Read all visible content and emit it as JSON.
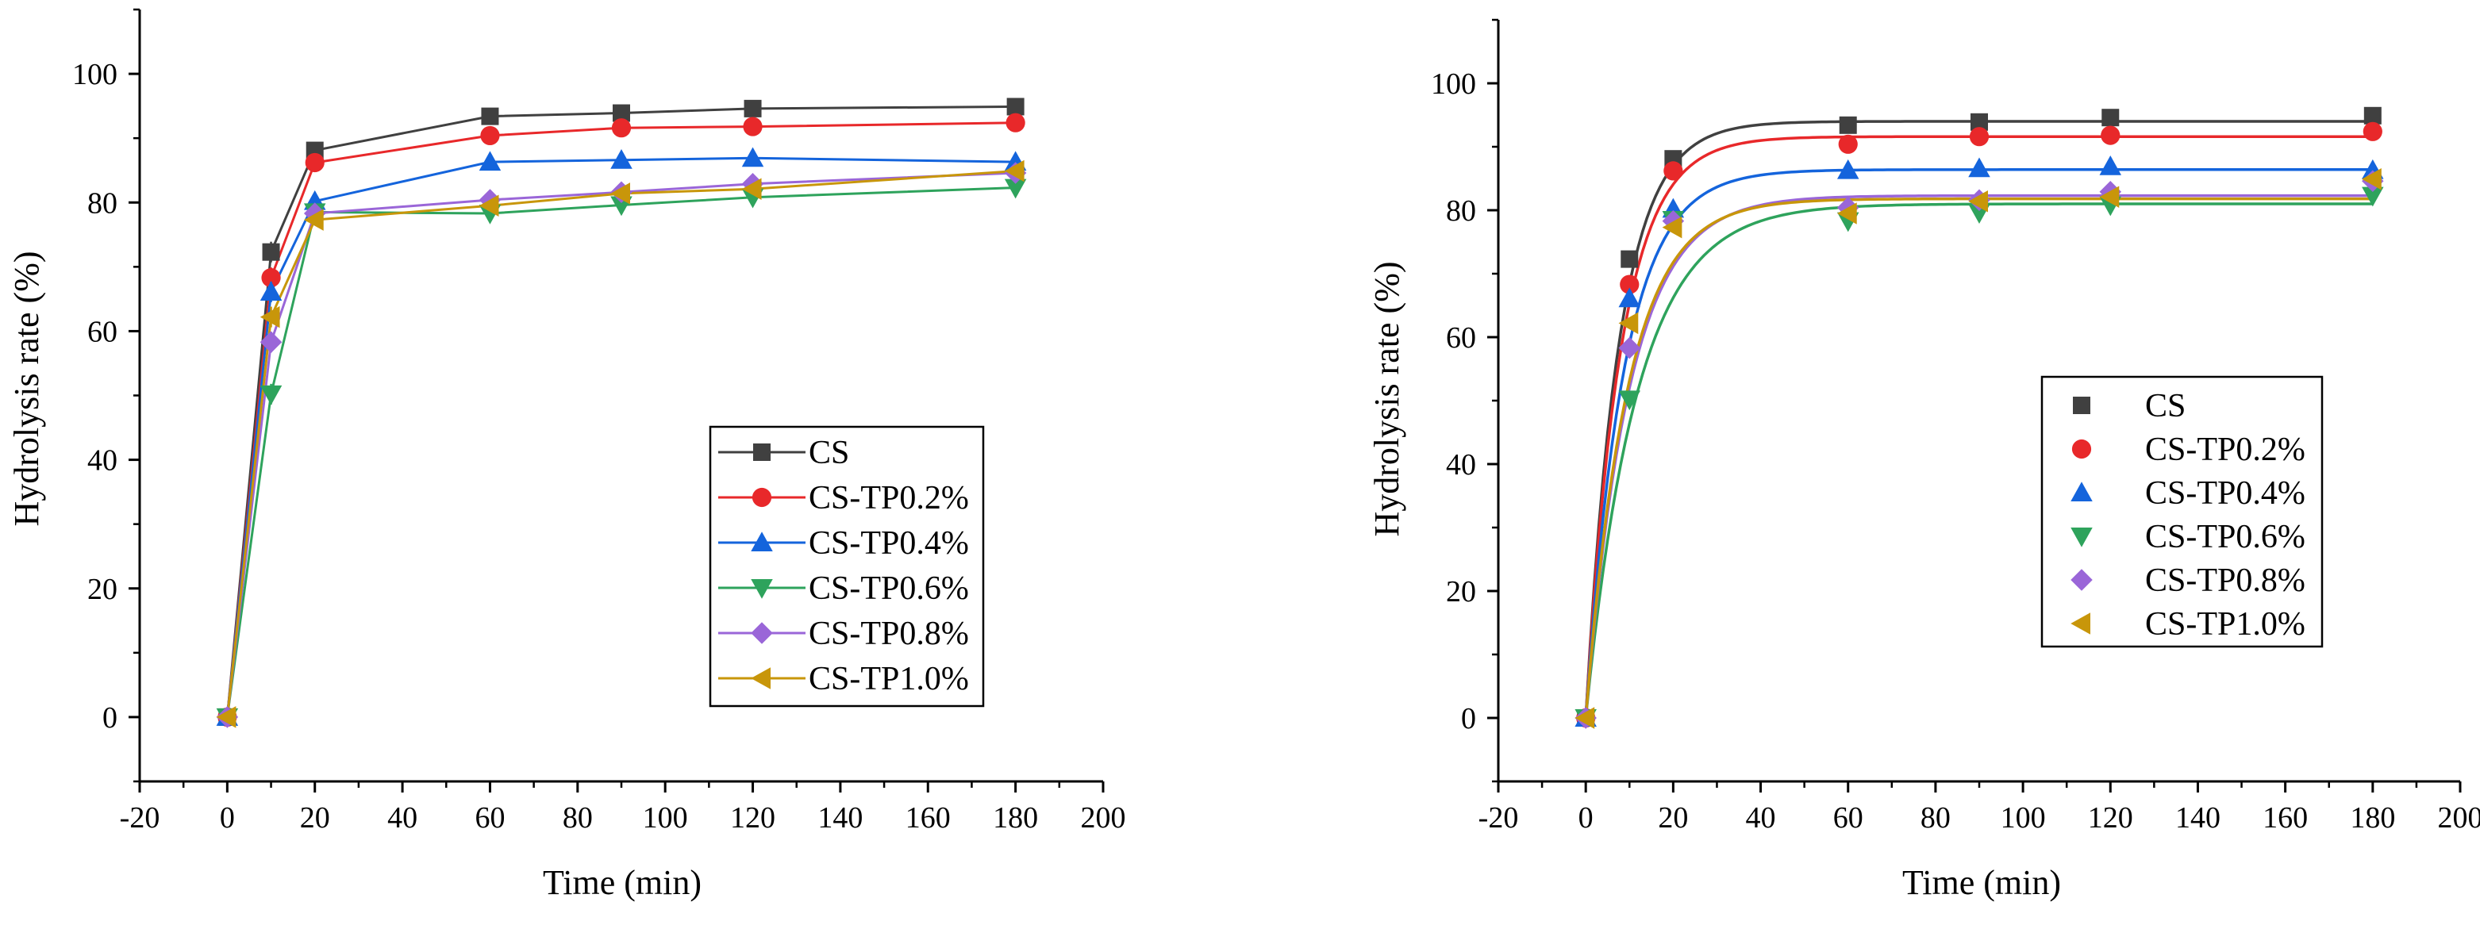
{
  "chart_data": [
    {
      "type": "line",
      "xlabel": "Time (min)",
      "ylabel": "Hydrolysis rate (%)",
      "xlim": [
        -20,
        200
      ],
      "ylim": [
        -10,
        110
      ],
      "xticks": [
        -20,
        0,
        20,
        40,
        60,
        80,
        100,
        120,
        140,
        160,
        180,
        200
      ],
      "yticks": [
        0,
        20,
        40,
        60,
        80,
        100
      ],
      "grid": false,
      "legend_position": "bottom-right",
      "x": [
        0,
        10,
        20,
        60,
        90,
        120,
        180
      ],
      "series": [
        {
          "name": "CS",
          "color": "#404040",
          "marker": "square",
          "values": [
            0,
            72.3,
            88.1,
            93.4,
            93.9,
            94.6,
            94.9
          ]
        },
        {
          "name": "CS-TP0.2%",
          "color": "#e8282a",
          "marker": "circle",
          "values": [
            0,
            68.3,
            86.2,
            90.4,
            91.6,
            91.8,
            92.4
          ]
        },
        {
          "name": "CS-TP0.4%",
          "color": "#1464dc",
          "marker": "triangle-up",
          "values": [
            0,
            66.1,
            80.2,
            86.3,
            86.6,
            86.9,
            86.3
          ]
        },
        {
          "name": "CS-TP0.6%",
          "color": "#2ea35c",
          "marker": "triangle-down",
          "values": [
            0,
            50.2,
            78.5,
            78.3,
            79.6,
            80.8,
            82.3
          ]
        },
        {
          "name": "CS-TP0.8%",
          "color": "#9a66d8",
          "marker": "diamond",
          "values": [
            0,
            58.3,
            78.3,
            80.4,
            81.6,
            82.9,
            84.6
          ]
        },
        {
          "name": "CS-TP1.0%",
          "color": "#c8960a",
          "marker": "triangle-left",
          "values": [
            0,
            62.2,
            77.3,
            79.5,
            81.4,
            82.1,
            84.9
          ]
        }
      ]
    },
    {
      "type": "scatter",
      "xlabel": "Time (min)",
      "ylabel": "Hydrolysis rate (%)",
      "xlim": [
        -20,
        200
      ],
      "ylim": [
        -10,
        110
      ],
      "xticks": [
        -20,
        0,
        20,
        40,
        60,
        80,
        100,
        120,
        140,
        160,
        180,
        200
      ],
      "yticks": [
        0,
        20,
        40,
        60,
        80,
        100
      ],
      "grid": false,
      "legend_position": "center-right",
      "fit": "exponential",
      "x": [
        0,
        10,
        20,
        60,
        90,
        120,
        180
      ],
      "series": [
        {
          "name": "CS",
          "color": "#404040",
          "marker": "square",
          "values": [
            0,
            72.3,
            88.1,
            93.4,
            93.9,
            94.6,
            94.9
          ],
          "fit_plateau": 94.0,
          "fit_rate": 0.13
        },
        {
          "name": "CS-TP0.2%",
          "color": "#e8282a",
          "marker": "circle",
          "values": [
            0,
            68.3,
            86.2,
            90.4,
            91.6,
            91.8,
            92.4
          ],
          "fit_plateau": 91.6,
          "fit_rate": 0.125
        },
        {
          "name": "CS-TP0.4%",
          "color": "#1464dc",
          "marker": "triangle-up",
          "values": [
            0,
            66.1,
            80.2,
            86.3,
            86.6,
            86.9,
            86.3
          ],
          "fit_plateau": 86.4,
          "fit_rate": 0.115
        },
        {
          "name": "CS-TP0.6%",
          "color": "#2ea35c",
          "marker": "triangle-down",
          "values": [
            0,
            50.2,
            78.5,
            78.3,
            79.6,
            80.8,
            82.3
          ],
          "fit_plateau": 81.0,
          "fit_rate": 0.085
        },
        {
          "name": "CS-TP0.8%",
          "color": "#9a66d8",
          "marker": "diamond",
          "values": [
            0,
            58.3,
            78.3,
            80.4,
            81.6,
            82.9,
            84.6
          ],
          "fit_plateau": 82.3,
          "fit_rate": 0.1
        },
        {
          "name": "CS-TP1.0%",
          "color": "#c8960a",
          "marker": "triangle-left",
          "values": [
            0,
            62.2,
            77.3,
            79.5,
            81.4,
            82.1,
            84.9
          ],
          "fit_plateau": 81.8,
          "fit_rate": 0.105
        }
      ]
    }
  ]
}
